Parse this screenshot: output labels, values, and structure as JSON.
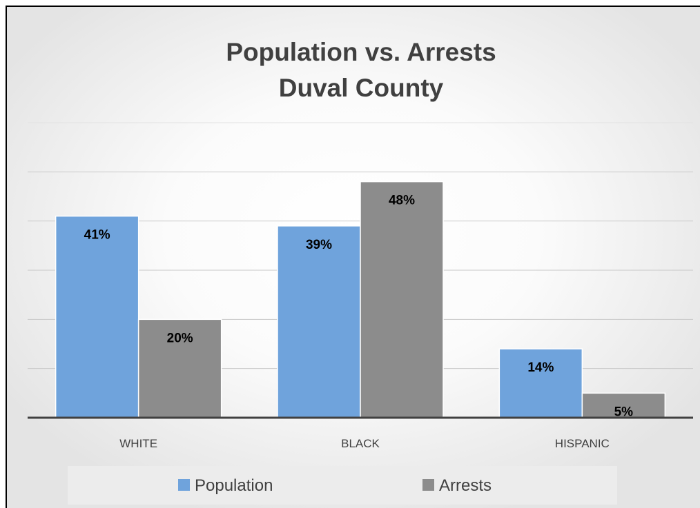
{
  "chart_data": {
    "type": "bar",
    "title": "Population vs. Arrests",
    "subtitle": "Duval County",
    "categories": [
      "WHITE",
      "BLACK",
      "HISPANIC"
    ],
    "series": [
      {
        "name": "Population",
        "values": [
          41,
          39,
          14
        ],
        "labels": [
          "41%",
          "39%",
          "14%"
        ],
        "color": "#6fa3dc"
      },
      {
        "name": "Arrests",
        "values": [
          20,
          48,
          5
        ],
        "labels": [
          "20%",
          "48%",
          "5%"
        ],
        "color": "#8c8c8c"
      }
    ],
    "ylim": [
      0,
      60
    ],
    "y_axis_visible": false,
    "grid": true,
    "legend_position": "bottom"
  }
}
